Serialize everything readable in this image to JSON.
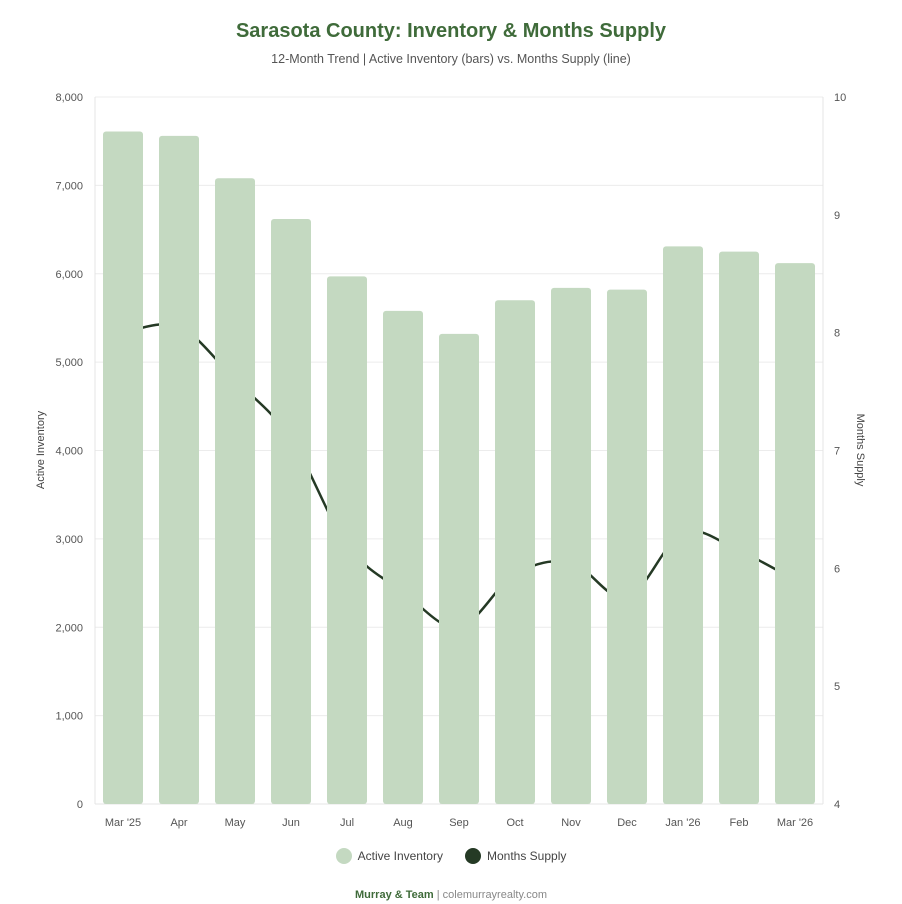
{
  "chart_data": {
    "type": "bar+line",
    "title": "Sarasota County: Inventory & Months Supply",
    "subtitle": "12-Month Trend | Active Inventory (bars) vs. Months Supply (line)",
    "categories": [
      "Mar '25",
      "Apr",
      "May",
      "Jun",
      "Jul",
      "Aug",
      "Sep",
      "Oct",
      "Nov",
      "Dec",
      "Jan '26",
      "Feb",
      "Mar '26"
    ],
    "series": [
      {
        "name": "Active Inventory",
        "type": "bar",
        "axis": "left",
        "values": [
          7610,
          7560,
          7080,
          6620,
          5970,
          5580,
          5320,
          5700,
          5840,
          5820,
          6310,
          6250,
          6120
        ]
      },
      {
        "name": "Months Supply",
        "type": "line",
        "axis": "right",
        "values": [
          8.0,
          8.05,
          7.6,
          7.1,
          6.2,
          5.8,
          5.5,
          5.95,
          6.05,
          5.75,
          6.3,
          6.15,
          5.9
        ]
      }
    ],
    "ylabel": "Active Inventory",
    "y2label": "Months Supply",
    "ylim": [
      0,
      8000
    ],
    "y2lim": [
      4,
      10
    ],
    "yticks": [
      "0",
      "1,000",
      "2,000",
      "3,000",
      "4,000",
      "5,000",
      "6,000",
      "7,000",
      "8,000"
    ],
    "y2ticks": [
      "4",
      "5",
      "6",
      "7",
      "8",
      "9",
      "10"
    ],
    "grid": true,
    "legend": "bottom-center"
  },
  "colors": {
    "bar": "#c4d9c1",
    "line": "#253a25",
    "title": "#3f6b3a"
  },
  "footer": {
    "brand": "Murray & Team",
    "separator": "|",
    "site": "colemurrayrealty.com"
  }
}
